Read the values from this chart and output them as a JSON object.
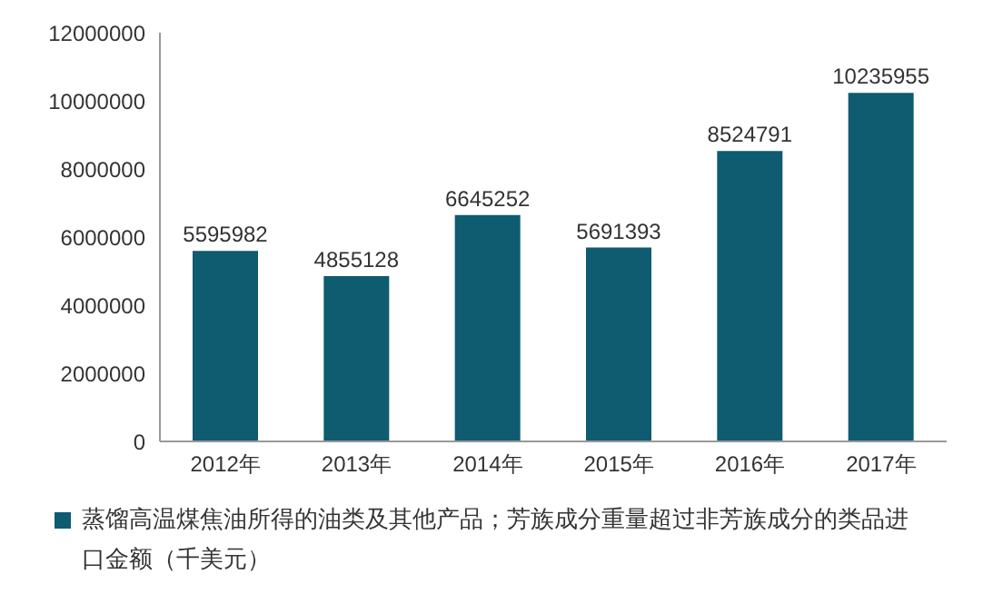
{
  "chart_data": {
    "type": "bar",
    "categories": [
      "2012年",
      "2013年",
      "2014年",
      "2015年",
      "2016年",
      "2017年"
    ],
    "series": [
      {
        "name": "蒸馏高温煤焦油所得的油类及其他产品；芳族成分重量超过非芳族成分的类品进口金额（千美元）",
        "color": "#0f5b6f",
        "values": [
          5595982,
          4855128,
          6645252,
          5691393,
          8524791,
          10235955
        ]
      }
    ],
    "ylim": [
      0,
      12000000
    ],
    "yticks": [
      0,
      2000000,
      4000000,
      6000000,
      8000000,
      10000000,
      12000000
    ],
    "grid": false,
    "legend": "bottom",
    "data_labels": true
  }
}
